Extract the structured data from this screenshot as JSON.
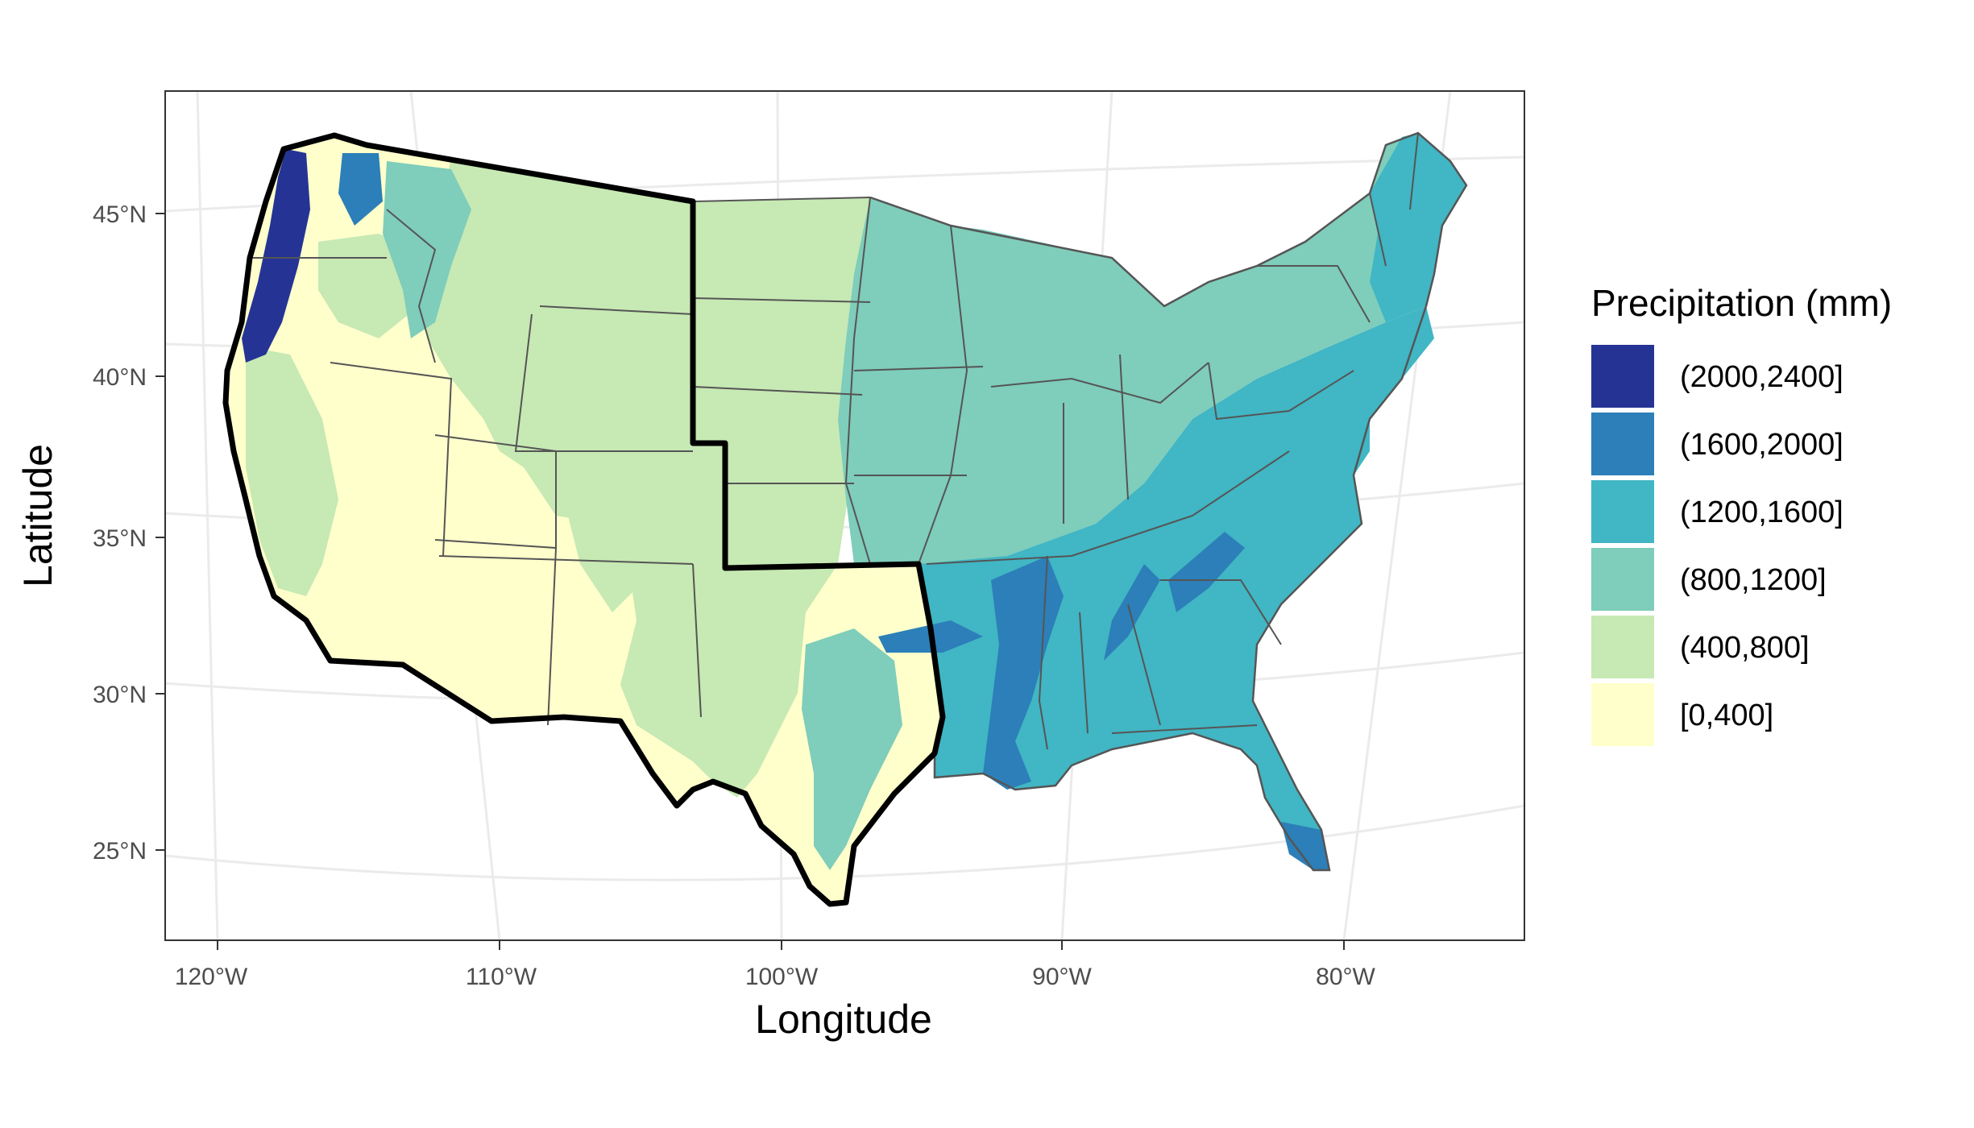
{
  "chart_data": {
    "type": "choropleth-map",
    "xlabel": "Longitude",
    "ylabel": "Latitude",
    "x_ticks": [
      "120°W",
      "110°W",
      "100°W",
      "90°W",
      "80°W"
    ],
    "y_ticks": [
      "25°N",
      "30°N",
      "35°N",
      "40°N",
      "45°N"
    ],
    "xlim": [
      -121.5,
      -73.5
    ],
    "ylim": [
      22.5,
      48.5
    ],
    "grid": true,
    "legend": {
      "title": "Precipitation (mm)",
      "placement": "right",
      "items": [
        {
          "label": "(2000,2400]",
          "color": "#253494"
        },
        {
          "label": "(1600,2000]",
          "color": "#2c7fb8"
        },
        {
          "label": "(1200,1600]",
          "color": "#41b6c4"
        },
        {
          "label": "(800,1200]",
          "color": "#7fcdbb"
        },
        {
          "label": "(400,800]",
          "color": "#c7e9b4"
        },
        {
          "label": "[0,400]",
          "color": "#ffffcc"
        }
      ]
    },
    "highlighted_region": "western states (thick black outline)",
    "colors": {
      "panel_border": "#333333",
      "grid": "#ebebeb",
      "state_border": "#555555",
      "highlight_border": "#000000"
    }
  }
}
